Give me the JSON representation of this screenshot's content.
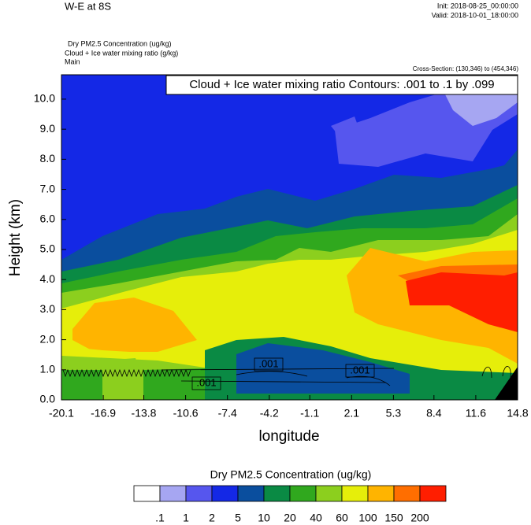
{
  "chart_data": {
    "type": "contour",
    "title": "W-E at 8S",
    "init": "Init: 2018-08-25_00:00:00",
    "valid": "Valid: 2018-10-01_18:00:00",
    "field_titles": [
      "Dry PM2.5 Concentration   (ug/kg)",
      "Cloud + Ice water mixing ratio   (g/kg)",
      "Main"
    ],
    "cross_section": "Cross-Section: (130,346) to (454,346)",
    "contour_info": "Cloud + Ice water mixing ratio Contours: .001 to .1 by .099",
    "contour_labels": [
      ".001",
      ".001",
      ".001"
    ],
    "xlabel": "longitude",
    "ylabel": "Height (km)",
    "xlim": [
      -20.1,
      14.8
    ],
    "xticks": [
      -20.1,
      -16.9,
      -13.8,
      -10.6,
      -7.4,
      -4.2,
      -1.1,
      2.1,
      5.3,
      8.4,
      11.6,
      14.8
    ],
    "ylim": [
      0,
      10.81
    ],
    "yticks": [
      {
        "value": 0,
        "label": "0.0"
      },
      {
        "value": 1,
        "label": "1.0"
      },
      {
        "value": 2,
        "label": "2.0"
      },
      {
        "value": 3,
        "label": "3.0"
      },
      {
        "value": 4,
        "label": "4.0"
      },
      {
        "value": 5,
        "label": "5.0"
      },
      {
        "value": 6,
        "label": "6.0"
      },
      {
        "value": 7,
        "label": "7.0"
      },
      {
        "value": 8,
        "label": "8.0"
      },
      {
        "value": 9,
        "label": "9.0"
      },
      {
        "value": 10,
        "label": "10.0"
      }
    ],
    "colorbar_title": "Dry PM2.5 Concentration  (ug/kg)",
    "levels": [
      {
        "value": 0.1,
        "label": ".1"
      },
      1,
      2,
      5,
      10,
      20,
      40,
      60,
      100,
      150,
      200
    ],
    "colors": [
      "#ffffff",
      "#a6a6f2",
      "#5656ee",
      "#1428e6",
      "#0a4e9e",
      "#0a8a44",
      "#30a81e",
      "#8ccf1e",
      "#e6ee0a",
      "#ffb400",
      "#ff6e00",
      "#ff1e00"
    ]
  }
}
